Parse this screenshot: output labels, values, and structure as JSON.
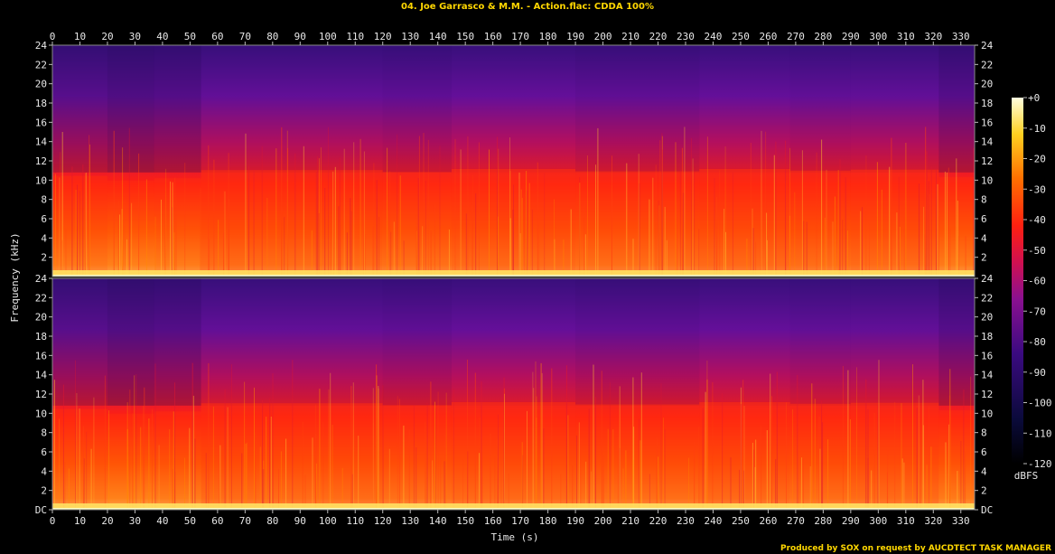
{
  "title": "04. Joe Garrasco & M.M. - Action.flac: CDDA 100%",
  "footer": "Produced by SOX on request by AUCDTECT TASK MANAGER",
  "chart_data": {
    "type": "heatmap",
    "title": "04. Joe Garrasco & M.M. - Action.flac: CDDA 100%",
    "xlabel": "Time (s)",
    "ylabel": "Frequency (kHz)",
    "xlim": [
      0,
      335
    ],
    "ylim": [
      0,
      24
    ],
    "x_ticks": [
      "0",
      "10",
      "20",
      "30",
      "40",
      "50",
      "60",
      "70",
      "80",
      "90",
      "100",
      "110",
      "120",
      "130",
      "140",
      "150",
      "160",
      "170",
      "180",
      "190",
      "200",
      "210",
      "220",
      "230",
      "240",
      "250",
      "260",
      "270",
      "280",
      "290",
      "300",
      "310",
      "320",
      "330"
    ],
    "y_ticks_top": [
      "2",
      "4",
      "6",
      "8",
      "10",
      "12",
      "14",
      "16",
      "18",
      "20",
      "22",
      "24"
    ],
    "y_ticks_bottom": [
      "DC",
      "2",
      "4",
      "6",
      "8",
      "10",
      "12",
      "14",
      "16",
      "18",
      "20",
      "22",
      "24"
    ],
    "channels": 2,
    "colorbar": {
      "label": "dBFS",
      "ticks": [
        "+0",
        "-10",
        "-20",
        "-30",
        "-40",
        "-50",
        "-60",
        "-70",
        "-80",
        "-90",
        "-100",
        "-110",
        "-120"
      ],
      "range": [
        -120,
        0
      ]
    },
    "segments": [
      {
        "t0": 0,
        "t1": 20,
        "level": 0.55
      },
      {
        "t0": 20,
        "t1": 37,
        "level": 0.35
      },
      {
        "t0": 37,
        "t1": 54,
        "level": 0.45
      },
      {
        "t0": 54,
        "t1": 120,
        "level": 0.8
      },
      {
        "t0": 120,
        "t1": 145,
        "level": 0.72
      },
      {
        "t0": 145,
        "t1": 190,
        "level": 0.85
      },
      {
        "t0": 190,
        "t1": 235,
        "level": 0.75
      },
      {
        "t0": 235,
        "t1": 268,
        "level": 0.85
      },
      {
        "t0": 268,
        "t1": 290,
        "level": 0.78
      },
      {
        "t0": 290,
        "t1": 322,
        "level": 0.82
      },
      {
        "t0": 322,
        "t1": 335,
        "level": 0.5
      }
    ]
  }
}
